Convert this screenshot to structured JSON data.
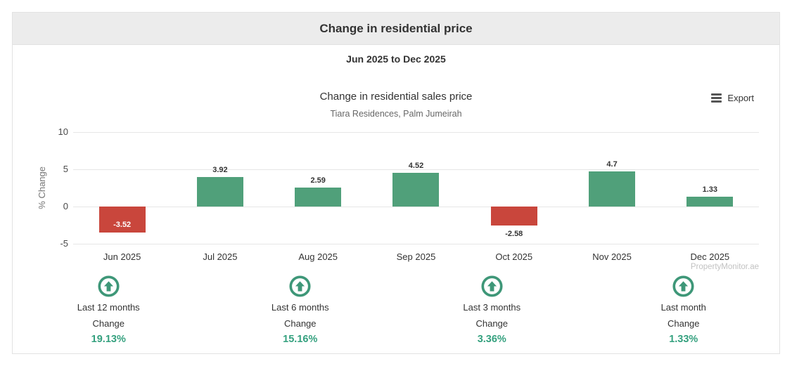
{
  "header": {
    "title": "Change in residential price",
    "date_range": "Jun 2025 to Dec 2025"
  },
  "chart": {
    "title": "Change in residential sales price",
    "subtitle": "Tiara Residences, Palm Jumeirah",
    "export_label": "Export",
    "ylabel": "% Change",
    "watermark": "PropertyMonitor.ae"
  },
  "chart_data": {
    "type": "bar",
    "title": "Change in residential sales price",
    "subtitle": "Tiara Residences, Palm Jumeirah",
    "xlabel": "",
    "ylabel": "% Change",
    "ylim": [
      -5,
      10
    ],
    "yticks": [
      10,
      5,
      0,
      -5
    ],
    "grid": true,
    "legend": false,
    "categories": [
      "Jun 2025",
      "Jul 2025",
      "Aug 2025",
      "Sep 2025",
      "Oct 2025",
      "Nov 2025",
      "Dec 2025"
    ],
    "values": [
      -3.52,
      3.92,
      2.59,
      4.52,
      -2.58,
      4.7,
      1.33
    ],
    "value_labels": [
      "-3.52",
      "3.92",
      "2.59",
      "4.52",
      "-2.58",
      "4.7",
      "1.33"
    ],
    "label_positions": [
      "inside",
      "above",
      "above",
      "above",
      "below",
      "above",
      "above"
    ],
    "colors": {
      "positive": "#50a07a",
      "negative": "#c9463c",
      "inside_label": "#ffffff",
      "outside_label": "#333333"
    }
  },
  "stats": [
    {
      "icon": "arrow-up-circle-icon",
      "period": "Last 12 months",
      "change_label": "Change",
      "value": "19.13%"
    },
    {
      "icon": "arrow-up-circle-icon",
      "period": "Last 6 months",
      "change_label": "Change",
      "value": "15.16%"
    },
    {
      "icon": "arrow-up-circle-icon",
      "period": "Last 3 months",
      "change_label": "Change",
      "value": "3.36%"
    },
    {
      "icon": "arrow-up-circle-icon",
      "period": "Last month",
      "change_label": "Change",
      "value": "1.33%"
    }
  ],
  "colors": {
    "header_bg": "#ececec",
    "card_border": "#e2e2e2",
    "grid": "#e6e6e6",
    "stat_accent": "#3e9778",
    "stat_value_text": "#35a17f"
  }
}
